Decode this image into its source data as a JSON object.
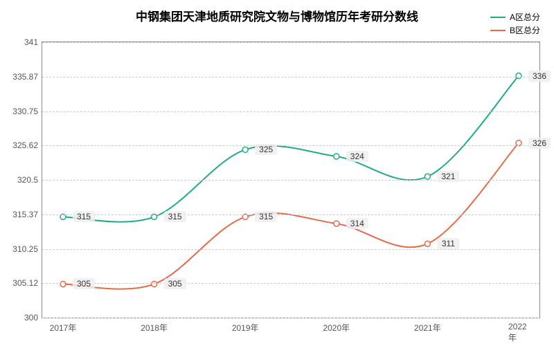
{
  "chart": {
    "type": "line",
    "title": "中钢集团天津地质研究院文物与博物馆历年考研分数线",
    "title_fontsize": 17,
    "background_color": "#ffffff",
    "grid_color": "#cccccc",
    "border_color": "#888888",
    "x": {
      "categories": [
        "2017年",
        "2018年",
        "2019年",
        "2020年",
        "2021年",
        "2022年"
      ],
      "tick_fontsize": 12
    },
    "y": {
      "min": 300,
      "max": 341,
      "ticks": [
        300,
        305.12,
        310.25,
        315.37,
        320.5,
        325.62,
        330.75,
        335.87,
        341
      ],
      "tick_fontsize": 12
    },
    "series": [
      {
        "name": "A区总分",
        "color": "#1fab89",
        "line_width": 2,
        "smooth": true,
        "values": [
          315,
          315,
          325,
          324,
          321,
          336
        ]
      },
      {
        "name": "B区总分",
        "color": "#e8684a",
        "line_width": 2,
        "smooth": true,
        "values": [
          305,
          305,
          315,
          314,
          311,
          326
        ]
      }
    ],
    "label_box_bg": "rgba(238,238,238,0.85)"
  }
}
